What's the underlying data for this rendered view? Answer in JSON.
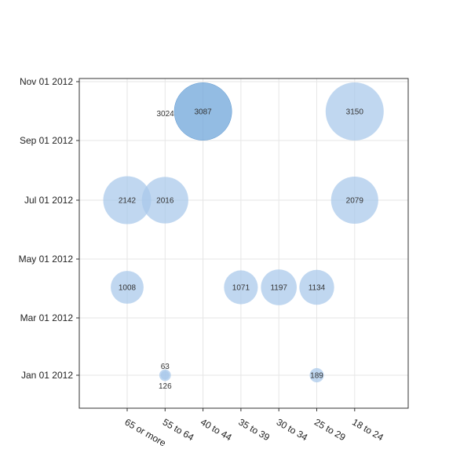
{
  "chart_data": {
    "type": "scatter",
    "variant": "bubble",
    "title": "",
    "xlabel": "",
    "ylabel": "",
    "categories": [
      "65 or more",
      "55 to 64",
      "40 to 44",
      "35 to 39",
      "30 to 34",
      "25 to 29",
      "18 to 24"
    ],
    "y_ticks": [
      "Nov 01 2012",
      "Sep 01 2012",
      "Jul 01 2012",
      "May 01 2012",
      "Mar 01 2012",
      "Jan 01 2012"
    ],
    "ylim": [
      "2011-12-01",
      "2012-11-01"
    ],
    "grid": true,
    "legend": "none",
    "colors": {
      "bubble": "#a8c8ea",
      "bubble_highlight": "#6fa6da",
      "axis": "#333333",
      "grid": "#e6e6e6"
    },
    "points": [
      {
        "x": "40 to 44",
        "y": "2012-10-01",
        "value": 3087,
        "highlight": true
      },
      {
        "x": "40 to 44",
        "y": "2012-10-01",
        "value": 3024,
        "label_only": true
      },
      {
        "x": "18 to 24",
        "y": "2012-10-01",
        "value": 3150
      },
      {
        "x": "65 or more",
        "y": "2012-07-01",
        "value": 2142
      },
      {
        "x": "55 to 64",
        "y": "2012-07-01",
        "value": 2016
      },
      {
        "x": "18 to 24",
        "y": "2012-07-01",
        "value": 2079
      },
      {
        "x": "65 or more",
        "y": "2012-04-01",
        "value": 1008
      },
      {
        "x": "35 to 39",
        "y": "2012-04-01",
        "value": 1071
      },
      {
        "x": "30 to 34",
        "y": "2012-04-01",
        "value": 1197
      },
      {
        "x": "25 to 29",
        "y": "2012-04-01",
        "value": 1134
      },
      {
        "x": "55 to 64",
        "y": "2012-01-01",
        "value": 63
      },
      {
        "x": "55 to 64",
        "y": "2012-01-01",
        "value": 126
      },
      {
        "x": "25 to 29",
        "y": "2012-01-01",
        "value": 189
      }
    ]
  }
}
